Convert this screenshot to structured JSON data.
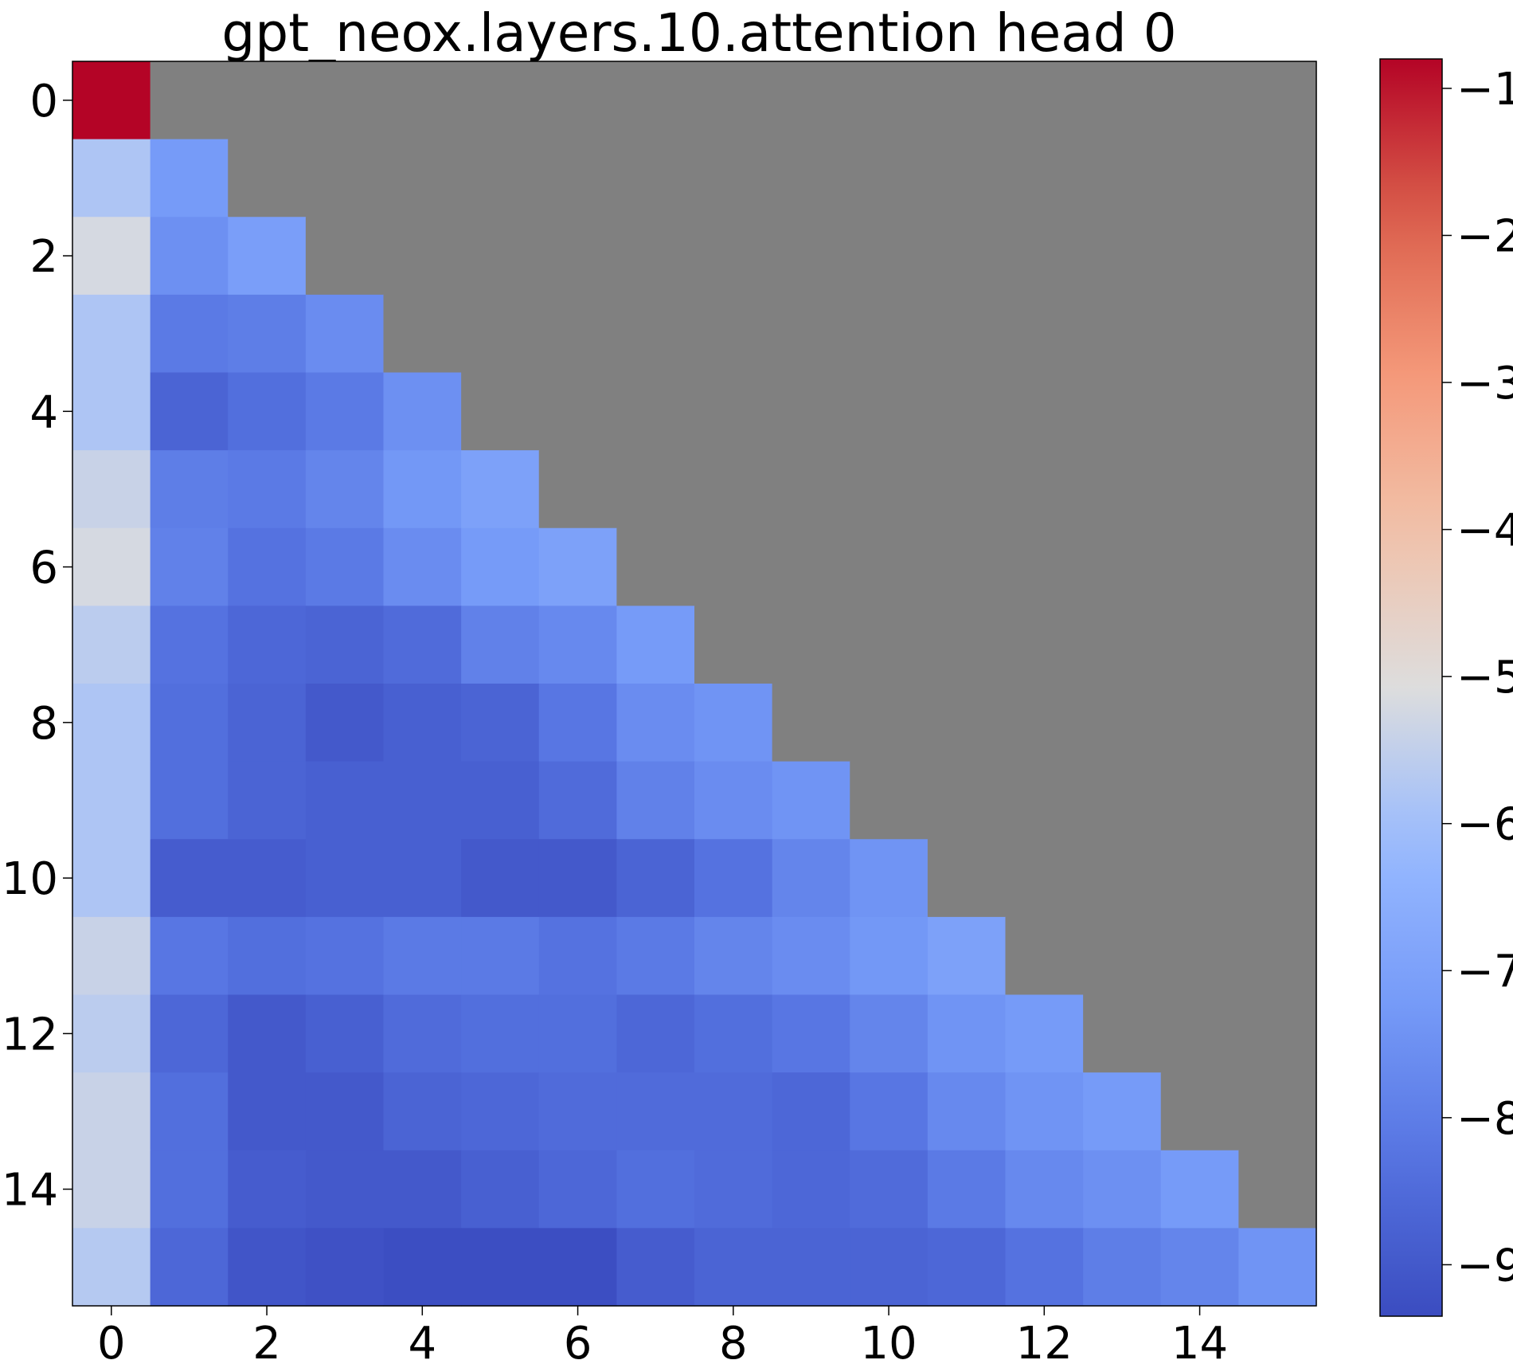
{
  "chart_data": {
    "type": "heatmap",
    "title": "gpt_neox.layers.10.attention head 0",
    "xlabel": "",
    "ylabel": "",
    "x_ticks": [
      "0",
      "2",
      "4",
      "6",
      "8",
      "10",
      "12",
      "14"
    ],
    "y_ticks": [
      "0",
      "2",
      "4",
      "6",
      "8",
      "10",
      "12",
      "14"
    ],
    "x_tick_values": [
      0,
      2,
      4,
      6,
      8,
      10,
      12,
      14
    ],
    "y_tick_values": [
      0,
      2,
      4,
      6,
      8,
      10,
      12,
      14
    ],
    "rows": 16,
    "cols": 16,
    "colormap": "coolwarm",
    "masked_color": "#808080",
    "vmin": -9.35,
    "vmax": -0.8,
    "colorbar_ticks": [
      -1,
      -2,
      -3,
      -4,
      -5,
      -6,
      -7,
      -8,
      -9
    ],
    "colorbar_tick_labels": [
      "−1",
      "−2",
      "−3",
      "−4",
      "−5",
      "−6",
      "−7",
      "−8",
      "−9"
    ],
    "masked": "upper triangle above diagonal (j > i)",
    "values": [
      [
        -0.8
      ],
      [
        -5.8,
        -7.2
      ],
      [
        -5.2,
        -7.5,
        -7.1
      ],
      [
        -5.8,
        -8.1,
        -8.0,
        -7.6
      ],
      [
        -5.8,
        -8.7,
        -8.4,
        -8.1,
        -7.5
      ],
      [
        -5.4,
        -8.0,
        -8.1,
        -7.8,
        -7.3,
        -7.0
      ],
      [
        -5.2,
        -7.9,
        -8.3,
        -8.1,
        -7.6,
        -7.2,
        -7.0
      ],
      [
        -5.6,
        -8.3,
        -8.6,
        -8.7,
        -8.5,
        -7.9,
        -7.7,
        -7.2
      ],
      [
        -5.8,
        -8.4,
        -8.7,
        -9.0,
        -8.8,
        -8.7,
        -8.2,
        -7.6,
        -7.4
      ],
      [
        -5.8,
        -8.4,
        -8.7,
        -8.8,
        -8.8,
        -8.8,
        -8.5,
        -7.9,
        -7.6,
        -7.4
      ],
      [
        -5.8,
        -8.9,
        -8.9,
        -8.8,
        -8.8,
        -9.0,
        -9.0,
        -8.7,
        -8.3,
        -7.8,
        -7.4
      ],
      [
        -5.4,
        -8.2,
        -8.4,
        -8.3,
        -8.1,
        -8.1,
        -8.3,
        -8.1,
        -7.8,
        -7.6,
        -7.3,
        -7.0
      ],
      [
        -5.6,
        -8.6,
        -9.0,
        -8.8,
        -8.5,
        -8.4,
        -8.4,
        -8.6,
        -8.4,
        -8.2,
        -7.8,
        -7.4,
        -7.2
      ],
      [
        -5.4,
        -8.4,
        -9.0,
        -9.0,
        -8.7,
        -8.6,
        -8.5,
        -8.5,
        -8.5,
        -8.6,
        -8.2,
        -7.7,
        -7.4,
        -7.2
      ],
      [
        -5.4,
        -8.4,
        -8.9,
        -9.0,
        -9.0,
        -8.8,
        -8.6,
        -8.4,
        -8.5,
        -8.6,
        -8.5,
        -8.1,
        -7.7,
        -7.5,
        -7.2
      ],
      [
        -5.7,
        -8.6,
        -9.1,
        -9.2,
        -9.3,
        -9.3,
        -9.3,
        -8.9,
        -8.7,
        -8.7,
        -8.7,
        -8.6,
        -8.3,
        -8.0,
        -7.8,
        -7.4
      ]
    ]
  }
}
